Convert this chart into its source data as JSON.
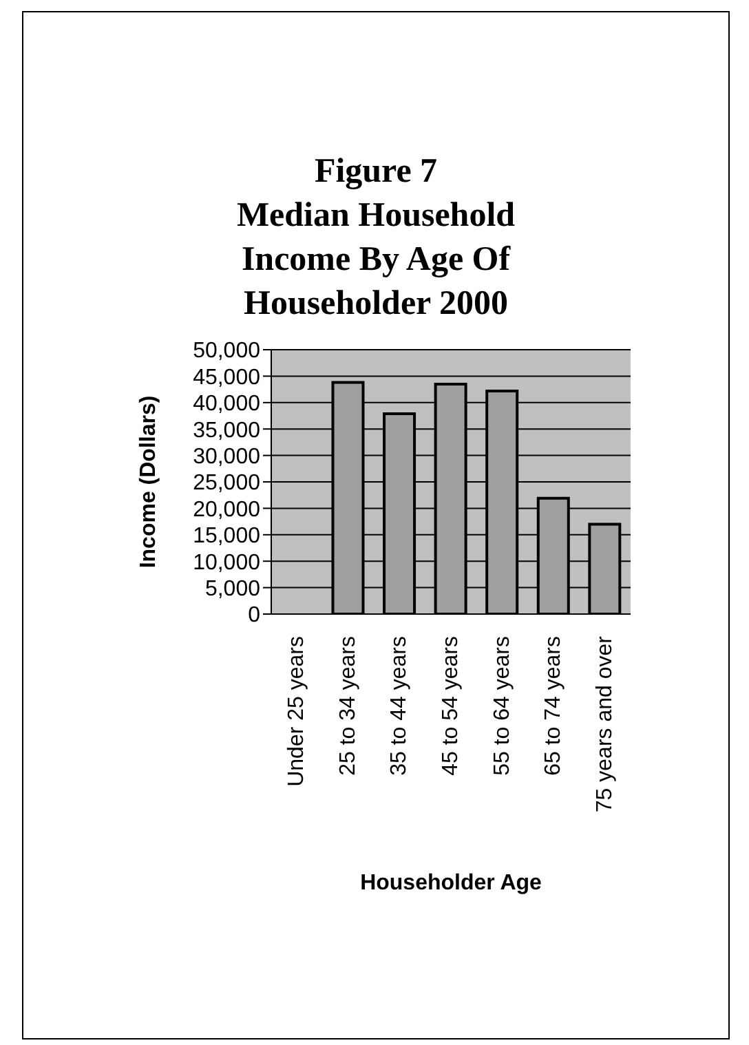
{
  "chart_data": {
    "type": "bar",
    "title": "Figure 7\nMedian Household\nIncome By Age Of\nHouseholder 2000",
    "xlabel": "Householder Age",
    "ylabel": "Income (Dollars)",
    "categories": [
      "Under 25 years",
      "25 to 34 years",
      "35 to 44 years",
      "45 to 54 years",
      "55 to 64 years",
      "65 to 74 years",
      "75 years and over"
    ],
    "values": [
      null,
      43800,
      37900,
      43500,
      42200,
      21900,
      17000
    ],
    "color": "#a0a0a0",
    "ylim": [
      0,
      50000
    ],
    "yticks": [
      0,
      {
        "value": 5000,
        "label": "5,000"
      },
      {
        "value": 10000,
        "label": "10,000"
      },
      {
        "value": 15000,
        "label": "15,000"
      },
      {
        "value": 20000,
        "label": "20,000"
      },
      {
        "value": 25000,
        "label": "25,000"
      },
      {
        "value": 30000,
        "label": "30,000"
      },
      {
        "value": 35000,
        "label": "35,000"
      },
      {
        "value": 40000,
        "label": "40,000"
      },
      {
        "value": 45000,
        "label": "45,000"
      },
      {
        "value": 50000,
        "label": "50,000"
      }
    ],
    "grid": "y"
  }
}
